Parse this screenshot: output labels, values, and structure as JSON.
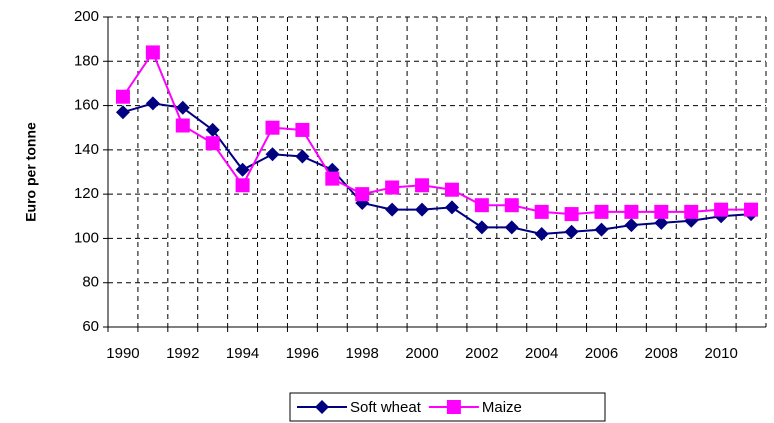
{
  "chart_data": {
    "type": "line",
    "y_label": "Euro per tonne",
    "categories": [
      "1990",
      null,
      "1992",
      null,
      "1994",
      null,
      "1996",
      null,
      "1998",
      null,
      "2000",
      null,
      "2002",
      null,
      "2004",
      null,
      "2006",
      null,
      "2008",
      null,
      "2010",
      null
    ],
    "series": [
      {
        "name": "Soft wheat",
        "color": "#000080",
        "marker": "diamond",
        "values": [
          157,
          161,
          159,
          149,
          131,
          138,
          137,
          131,
          116,
          113,
          113,
          114,
          105,
          105,
          102,
          103,
          104,
          106,
          107,
          108,
          110,
          111
        ]
      },
      {
        "name": "Maize",
        "color": "#ff00ff",
        "marker": "square",
        "values": [
          164,
          184,
          151,
          143,
          124,
          150,
          149,
          127,
          120,
          123,
          124,
          122,
          115,
          115,
          112,
          111,
          112,
          112,
          112,
          112,
          113,
          113
        ]
      }
    ],
    "ylim": [
      60,
      200
    ],
    "yticks": [
      60,
      80,
      100,
      120,
      140,
      160,
      180,
      200
    ],
    "grid": true,
    "legend": "bottom"
  }
}
